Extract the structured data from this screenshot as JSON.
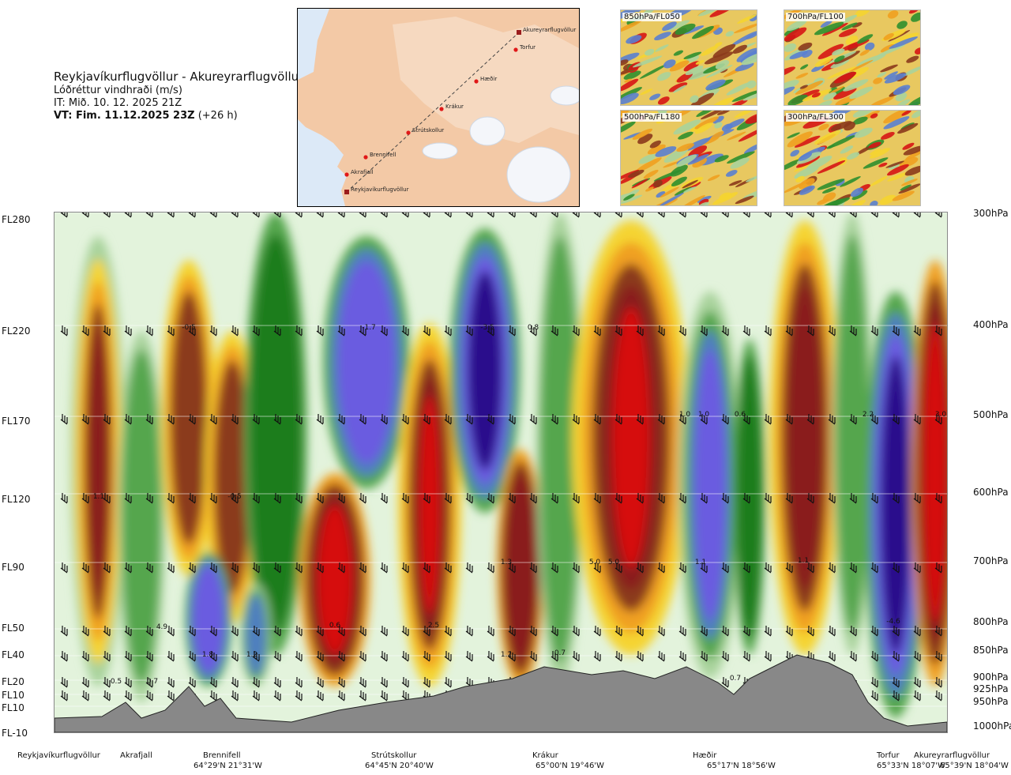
{
  "header": {
    "route": "Reykjavíkurflugvöllur - Akureyrarflugvöllur",
    "product": "Lóðréttur vindhraði (m/s)",
    "issue_time": "IT: Mið. 10. 12. 2025 21Z",
    "valid_time_bold": "VT: Fim. 11.12.2025 23Z",
    "valid_time_offset": "(+26 h)"
  },
  "route_map": {
    "waypoints": [
      "Akureyrarflugvöllur",
      "Torfur",
      "Hæðir",
      "Krákur",
      "Strútskollur",
      "Brennifell",
      "Akrafjall",
      "Reykjavíkurflugvöllur"
    ]
  },
  "level_maps": [
    {
      "label": "850hPa/FL050"
    },
    {
      "label": "700hPa/FL100"
    },
    {
      "label": "500hPa/FL180"
    },
    {
      "label": "300hPa/FL300"
    }
  ],
  "chart_data": {
    "type": "heatmap",
    "title": "Reykjavíkurflugvöllur - Akureyrarflugvöllur",
    "variable": "Lóðréttur vindhraði (m/s)",
    "y_left_ticks": [
      "FL280",
      "FL220",
      "FL170",
      "FL120",
      "FL90",
      "FL50",
      "FL40",
      "FL20",
      "FL10",
      "FL10",
      "FL-10"
    ],
    "y_right_ticks": [
      "300hPa",
      "400hPa",
      "500hPa",
      "600hPa",
      "700hPa",
      "800hPa",
      "850hPa",
      "900hPa",
      "925hPa",
      "950hPa",
      "1000hPa"
    ],
    "x_waypoints": [
      {
        "name": "Reykjavíkurflugvöllur",
        "coord": ""
      },
      {
        "name": "Akrafjall",
        "coord": ""
      },
      {
        "name": "Brennifell",
        "coord": "64°29'N 21°31'W"
      },
      {
        "name": "Strútskollur",
        "coord": "64°45'N 20°40'W"
      },
      {
        "name": "Krákur",
        "coord": "65°00'N 19°46'W"
      },
      {
        "name": "Hæðir",
        "coord": "65°17'N 18°56'W"
      },
      {
        "name": "Torfur",
        "coord": "65°33'N 18°07'W"
      },
      {
        "name": "Akureyrarflugvöllur",
        "coord": "65°39'N 18°04'W"
      }
    ],
    "annotations": [
      "-0.5",
      "-1.7",
      "-3.5",
      "0.8",
      "1.0",
      "1.0",
      "0.6",
      "2.2",
      "3.0",
      "1.1",
      "-0.5",
      "1.3",
      "5.0",
      "5.0",
      "1.1",
      "1.1",
      "0.6",
      "2.5",
      "4.9",
      "1.8",
      "1.2",
      "1.2",
      "0.7",
      "-4.6",
      "0.5",
      "0.7",
      "0.7"
    ],
    "colors": {
      "strong_down": "#2a0a8c",
      "down": "#6a5ce0",
      "weak_down": "#4f7fbf",
      "green_dark": "#1b7d1b",
      "green": "#55a64e",
      "green_light": "#a9d39c",
      "pale": "#e3f3dc",
      "yellow": "#f5d430",
      "orange": "#f0a020",
      "brown": "#8b3a1c",
      "red_dark": "#8a1a1a",
      "red": "#d60f0f",
      "terrain": "#888888"
    }
  }
}
